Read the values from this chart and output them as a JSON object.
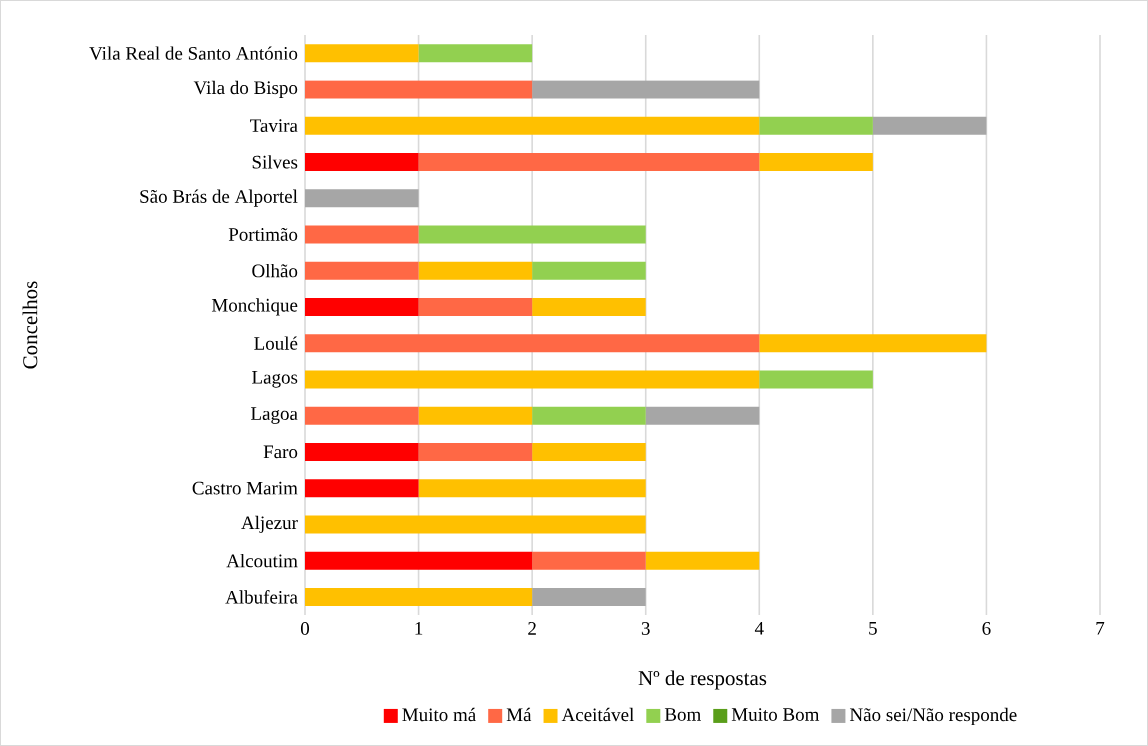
{
  "chart_data": {
    "type": "bar",
    "orientation": "horizontal",
    "stacked": true,
    "categories": [
      "Vila Real de Santo António",
      "Vila do Bispo",
      "Tavira",
      "Silves",
      "São Brás de Alportel",
      "Portimão",
      "Olhão",
      "Monchique",
      "Loulé",
      "Lagos",
      "Lagoa",
      "Faro",
      "Castro Marim",
      "Aljezur",
      "Alcoutim",
      "Albufeira"
    ],
    "series": [
      {
        "name": "Muito má",
        "color": "#ff0000",
        "values": [
          0,
          0,
          0,
          1,
          0,
          0,
          0,
          1,
          0,
          0,
          0,
          1,
          1,
          0,
          2,
          0
        ]
      },
      {
        "name": "Má",
        "color": "#ff6845",
        "values": [
          0,
          2,
          0,
          3,
          0,
          1,
          1,
          1,
          4,
          0,
          1,
          1,
          0,
          0,
          1,
          0
        ]
      },
      {
        "name": "Aceitável",
        "color": "#ffc000",
        "values": [
          1,
          0,
          4,
          1,
          0,
          0,
          1,
          1,
          2,
          4,
          1,
          1,
          2,
          3,
          1,
          2
        ]
      },
      {
        "name": "Bom",
        "color": "#92d050",
        "values": [
          1,
          0,
          1,
          0,
          0,
          2,
          1,
          0,
          0,
          1,
          1,
          0,
          0,
          0,
          0,
          0
        ]
      },
      {
        "name": "Muito Bom",
        "color": "#5a9e1a",
        "values": [
          0,
          0,
          0,
          0,
          0,
          0,
          0,
          0,
          0,
          0,
          0,
          0,
          0,
          0,
          0,
          0
        ]
      },
      {
        "name": "Não sei/Não responde",
        "color": "#a6a6a6",
        "values": [
          0,
          2,
          1,
          0,
          1,
          0,
          0,
          0,
          0,
          0,
          1,
          0,
          0,
          0,
          0,
          1
        ]
      }
    ],
    "xlabel": "Nº de respostas",
    "ylabel": "Concelhos",
    "xlim": [
      0,
      7
    ],
    "xticks": [
      0,
      1,
      2,
      3,
      4,
      5,
      6,
      7
    ],
    "grid": "x",
    "legend": "bottom"
  }
}
